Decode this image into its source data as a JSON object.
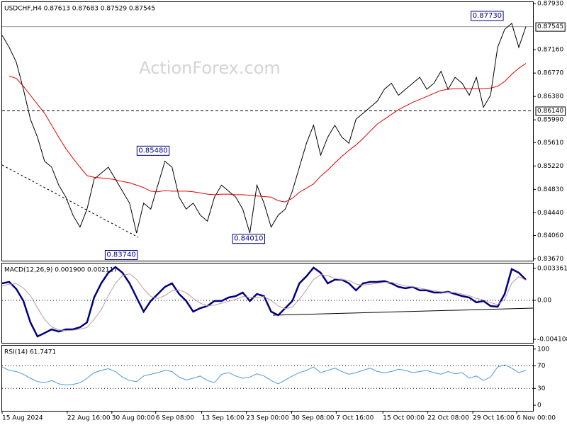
{
  "chart_data": [
    {
      "type": "line",
      "title": "USDCHF,H4 0.87613 0.87683 0.87529 0.87545",
      "watermark": "ActionForex.com",
      "x": [
        0,
        1,
        2,
        3,
        4,
        5,
        6,
        7,
        8,
        9,
        10,
        11,
        12,
        13,
        14,
        15,
        16,
        17,
        18,
        19,
        20,
        21,
        22,
        23,
        24,
        25,
        26,
        27,
        28,
        29,
        30,
        31,
        32,
        33,
        34,
        35,
        36,
        37,
        38,
        39,
        40,
        41,
        42,
        43,
        44,
        45,
        46,
        47,
        48,
        49,
        50,
        51,
        52,
        53,
        54,
        55,
        56,
        57,
        58,
        59,
        60,
        61,
        62,
        63,
        64,
        65,
        66,
        67,
        68,
        69,
        70,
        71,
        72,
        73,
        74
      ],
      "xlim": [
        0,
        75
      ],
      "ylim": [
        0.8364,
        0.87954
      ],
      "yticks": [
        {
          "value": 0.8793,
          "label": "0.87930"
        },
        {
          "value": 0.8716,
          "label": "0.87160"
        },
        {
          "value": 0.8677,
          "label": "0.86770"
        },
        {
          "value": 0.8638,
          "label": "0.86380"
        },
        {
          "value": 0.8599,
          "label": "0.85990"
        },
        {
          "value": 0.8561,
          "label": "0.85610"
        },
        {
          "value": 0.8522,
          "label": "0.85220"
        },
        {
          "value": 0.8483,
          "label": "0.84830"
        },
        {
          "value": 0.8444,
          "label": "0.84440"
        },
        {
          "value": 0.8406,
          "label": "0.84060"
        },
        {
          "value": 0.8367,
          "label": "0.83670"
        }
      ],
      "series": [
        {
          "color": "#000000",
          "values": [
            0.874,
            0.872,
            0.8695,
            0.865,
            0.86,
            0.857,
            0.853,
            0.852,
            0.849,
            0.847,
            0.844,
            0.842,
            0.845,
            0.85,
            0.851,
            0.852,
            0.85,
            0.848,
            0.846,
            0.841,
            0.846,
            0.845,
            0.849,
            0.853,
            0.852,
            0.847,
            0.845,
            0.846,
            0.844,
            0.843,
            0.847,
            0.849,
            0.848,
            0.847,
            0.845,
            0.841,
            0.849,
            0.846,
            0.842,
            0.844,
            0.845,
            0.848,
            0.852,
            0.856,
            0.859,
            0.854,
            0.857,
            0.859,
            0.857,
            0.856,
            0.86,
            0.861,
            0.862,
            0.863,
            0.865,
            0.866,
            0.864,
            0.865,
            0.866,
            0.867,
            0.865,
            0.866,
            0.868,
            0.865,
            0.867,
            0.866,
            0.864,
            0.867,
            0.862,
            0.864,
            0.872,
            0.875,
            0.876,
            0.872,
            0.87545
          ]
        },
        {
          "color": "#e00000",
          "values": [
            null,
            0.8672,
            0.8668,
            0.8655,
            0.864,
            0.8625,
            0.861,
            0.859,
            0.857,
            0.8551,
            0.8535,
            0.852,
            0.8506,
            0.8503,
            0.8502,
            0.8501,
            0.8499,
            0.8496,
            0.8494,
            0.849,
            0.8486,
            0.848,
            0.8479,
            0.8481,
            0.848,
            0.848,
            0.848,
            0.8479,
            0.8477,
            0.8475,
            0.8474,
            0.8475,
            0.8475,
            0.8474,
            0.8474,
            0.8473,
            0.8472,
            0.8471,
            0.847,
            0.8464,
            0.8462,
            0.8468,
            0.8478,
            0.8485,
            0.8492,
            0.8505,
            0.8515,
            0.8527,
            0.8538,
            0.8548,
            0.8557,
            0.8568,
            0.858,
            0.8592,
            0.86,
            0.8608,
            0.8616,
            0.8622,
            0.8628,
            0.8633,
            0.8638,
            0.8643,
            0.8648,
            0.865,
            0.8651,
            0.8651,
            0.8651,
            0.8651,
            0.8651,
            0.8652,
            0.8655,
            0.8663,
            0.8675,
            0.8685,
            0.8693
          ]
        }
      ],
      "levels": [
        {
          "value": 0.87545,
          "label": "0.87545",
          "style": "solid"
        },
        {
          "value": 0.8614,
          "label": "0.86140",
          "style": "dashed"
        }
      ],
      "annotations": [
        {
          "x": 70.9,
          "value": 0.8773,
          "label": "0.87730"
        },
        {
          "x": 23.7,
          "value": 0.8548,
          "label": "0.85480"
        },
        {
          "x": 19.2,
          "value": 0.8374,
          "label": "0.83740"
        },
        {
          "x": 37.2,
          "value": 0.8401,
          "label": "0.84010"
        }
      ]
    },
    {
      "type": "line",
      "title": "MACD(12,26,9) 0.001900 0.002117",
      "ylim": [
        -0.00448,
        0.00388
      ],
      "yticks": [
        0.003361,
        {
          "value": 0,
          "label": "0.00"
        },
        -0.004108
      ],
      "levels": [
        0
      ],
      "series": [
        {
          "color": "#000080",
          "width": 2.5,
          "values": [
            0.00179,
            0.00194,
            0.00119,
            -7e-05,
            -0.00232,
            -0.00381,
            -0.00344,
            -0.00306,
            -0.00329,
            -0.00306,
            -0.00306,
            -0.00284,
            -0.00232,
            0.0003,
            0.00179,
            0.00291,
            0.00351,
            0.00291,
            0.00179,
            0.0003,
            -0.00119,
            -7e-05,
            0.00067,
            0.00142,
            0.00179,
            0.00067,
            -7e-05,
            -0.00119,
            -0.00082,
            -0.0006,
            -7e-05,
            -7e-05,
            0.0003,
            0.00045,
            0.00082,
            -7e-05,
            0.00067,
            0.00045,
            -0.00119,
            -0.00157,
            -0.00082,
            -7e-05,
            0.00179,
            0.00254,
            0.00344,
            0.00291,
            0.00179,
            0.00217,
            0.00217,
            0.00179,
            0.00105,
            0.00179,
            0.00194,
            0.00194,
            0.00202,
            0.00179,
            0.00142,
            0.00127,
            0.00142,
            0.00105,
            0.00105,
            0.00082,
            0.00082,
            0.0009,
            0.00067,
            0.00045,
            0.0003,
            -0.00022,
            -7e-05,
            -0.0006,
            -0.00067,
            0.00067,
            0.00329,
            0.00291,
            0.00217
          ]
        },
        {
          "color": "#c09a9a",
          "width": 1,
          "values": [
            0.0015,
            0.0017,
            0.00175,
            0.0013,
            0.0005,
            -0.0008,
            -0.002,
            -0.0028,
            -0.0031,
            -0.0032,
            -0.00315,
            -0.00305,
            -0.00285,
            -0.002,
            -0.001,
            0.0005,
            0.0018,
            0.0026,
            0.0028,
            0.0022,
            0.0012,
            0.0004,
            0.0002,
            0.0005,
            0.001,
            0.0011,
            0.0008,
            0.0002,
            -0.0003,
            -0.0006,
            -0.0005,
            -0.0003,
            -0.0001,
            0.0001,
            0.0004,
            0.0003,
            0.0003,
            0.0004,
            0.0,
            -0.0006,
            -0.0009,
            -0.0007,
            0.0001,
            0.0011,
            0.0022,
            0.0027,
            0.0026,
            0.0023,
            0.0022,
            0.0021,
            0.0017,
            0.0016,
            0.0017,
            0.0018,
            0.0019,
            0.0019,
            0.0017,
            0.0015,
            0.00145,
            0.0013,
            0.00115,
            0.001,
            0.0009,
            0.00088,
            0.0008,
            0.00065,
            0.0005,
            0.0002,
            5e-05,
            -0.00025,
            -0.00045,
            0.0001,
            0.0018,
            0.0025,
            0.00212
          ]
        }
      ]
    },
    {
      "type": "line",
      "title": "RSI(14) 61.7471",
      "ylim": [
        -10,
        106
      ],
      "yticks": [
        100,
        70,
        30,
        0
      ],
      "levels": [
        70,
        30
      ],
      "series": [
        {
          "color": "#4a9ad8",
          "width": 1,
          "values": [
            68,
            62,
            60,
            55,
            48,
            42,
            40,
            44,
            38,
            36,
            37,
            40,
            48,
            58,
            62,
            65,
            60,
            50,
            44,
            42,
            52,
            55,
            58,
            62,
            60,
            50,
            45,
            48,
            52,
            44,
            40,
            55,
            58,
            52,
            48,
            50,
            56,
            52,
            44,
            38,
            45,
            52,
            58,
            62,
            68,
            58,
            62,
            66,
            60,
            55,
            58,
            62,
            66,
            60,
            58,
            60,
            64,
            62,
            58,
            60,
            62,
            58,
            55,
            60,
            56,
            58,
            48,
            52,
            44,
            50,
            68,
            72,
            66,
            58,
            62
          ]
        }
      ],
      "xticks": [
        {
          "value": 0,
          "label": "15 Aug 2024"
        },
        {
          "value": 9.2,
          "label": "22 Aug 16:00"
        },
        {
          "value": 15.5,
          "label": "30 Aug 00:00"
        },
        {
          "value": 21.7,
          "label": "6 Sep 08:00"
        },
        {
          "value": 28.2,
          "label": "13 Sep 16:00"
        },
        {
          "value": 34.5,
          "label": "23 Sep 00:00"
        },
        {
          "value": 40.9,
          "label": "30 Sep 08:00"
        },
        {
          "value": 47.2,
          "label": "7 Oct 16:00"
        },
        {
          "value": 53.8,
          "label": "15 Oct 00:00"
        },
        {
          "value": 60.1,
          "label": "22 Oct 08:00"
        },
        {
          "value": 66.5,
          "label": "29 Oct 16:00"
        },
        {
          "value": 72.7,
          "label": "6 Nov 00:00"
        }
      ]
    }
  ]
}
